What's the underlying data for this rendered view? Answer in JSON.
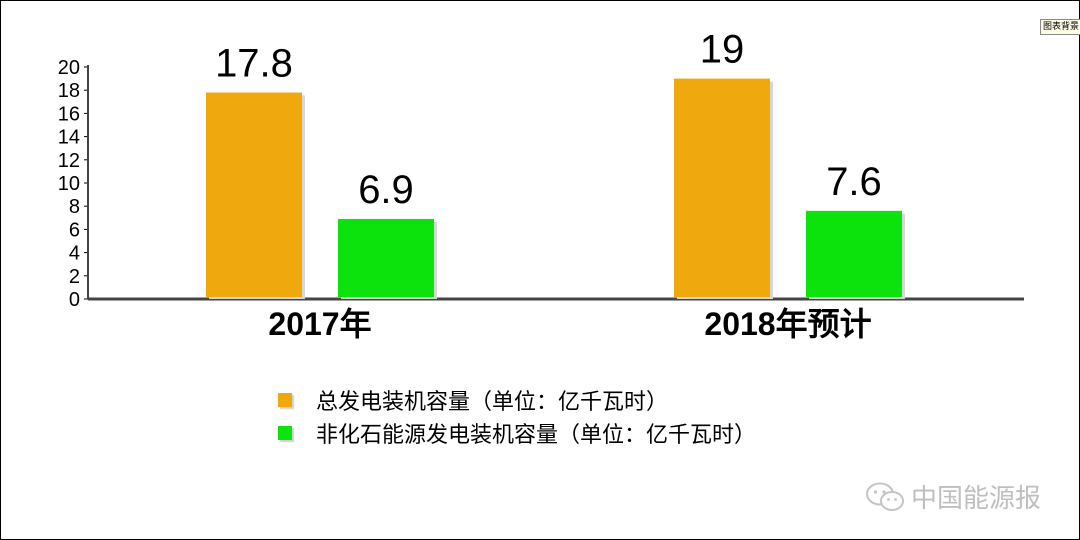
{
  "chart_data": {
    "type": "bar",
    "categories": [
      "2017年",
      "2018年预计"
    ],
    "series": [
      {
        "name": "总发电装机容量（单位：亿千瓦时）",
        "values": [
          17.8,
          19
        ],
        "color": "#f0a80f"
      },
      {
        "name": "非化石能源发电装机容量（单位：亿千瓦时）",
        "values": [
          6.9,
          7.6
        ],
        "color": "#0ce30c"
      }
    ],
    "ylim": [
      0,
      20
    ],
    "yticks": [
      0,
      2,
      4,
      6,
      8,
      10,
      12,
      14,
      16,
      18,
      20
    ],
    "grid": false,
    "legend_position": "bottom"
  },
  "watermark": {
    "text": "中国能源报",
    "icon": "wechat-icon"
  },
  "corner_tag": "图表背景"
}
